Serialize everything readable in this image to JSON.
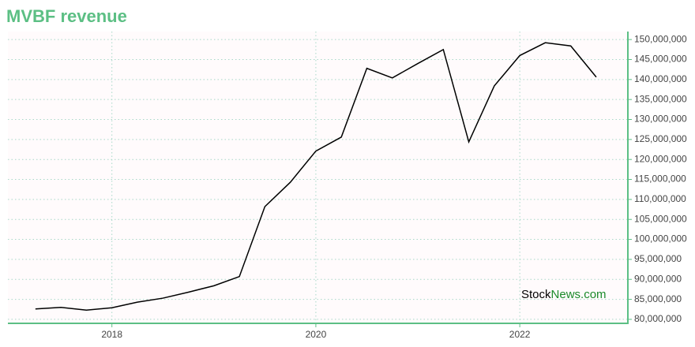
{
  "chart_data": {
    "type": "line",
    "title": "MVBF revenue",
    "x": [
      "2017-03",
      "2017-06",
      "2017-09",
      "2017-12",
      "2018-03",
      "2018-06",
      "2018-09",
      "2018-12",
      "2019-03",
      "2019-06",
      "2019-09",
      "2019-12",
      "2020-03",
      "2020-06",
      "2020-09",
      "2020-12",
      "2021-03",
      "2021-06",
      "2021-09",
      "2021-12",
      "2022-03",
      "2022-06",
      "2022-09"
    ],
    "series": [
      {
        "name": "MVBF revenue",
        "color": "#000000",
        "values": [
          82600000,
          83000000,
          82300000,
          82900000,
          84300000,
          85300000,
          86800000,
          88400000,
          90700000,
          108200000,
          114300000,
          122100000,
          125600000,
          142800000,
          140400000,
          144000000,
          147500000,
          124400000,
          138400000,
          146000000,
          149200000,
          148400000,
          140600000
        ]
      }
    ],
    "xlim": [
      2016.98,
      2023.06
    ],
    "xticks": [
      2018,
      2020,
      2022
    ],
    "ylim": [
      79000000,
      152000000
    ],
    "yticks": [
      {
        "value": 80000000,
        "label": "80,000,000"
      },
      {
        "value": 85000000,
        "label": "85,000,000"
      },
      {
        "value": 90000000,
        "label": "90,000,000"
      },
      {
        "value": 95000000,
        "label": "95,000,000"
      },
      {
        "value": 100000000,
        "label": "100,000,000"
      },
      {
        "value": 105000000,
        "label": "105,000,000"
      },
      {
        "value": 110000000,
        "label": "110,000,000"
      },
      {
        "value": 115000000,
        "label": "115,000,000"
      },
      {
        "value": 120000000,
        "label": "120,000,000"
      },
      {
        "value": 125000000,
        "label": "125,000,000"
      },
      {
        "value": 130000000,
        "label": "130,000,000"
      },
      {
        "value": 135000000,
        "label": "135,000,000"
      },
      {
        "value": 140000000,
        "label": "140,000,000"
      },
      {
        "value": 145000000,
        "label": "145,000,000"
      },
      {
        "value": 150000000,
        "label": "150,000,000"
      }
    ],
    "grid": true,
    "axis_color": "#5cbf84",
    "watermark": [
      "Stock",
      "News.com"
    ]
  }
}
